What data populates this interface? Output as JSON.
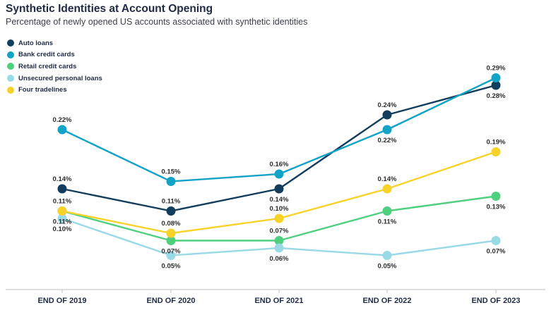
{
  "chart_data": {
    "type": "line",
    "title": "Synthetic Identities at Account Opening",
    "subtitle": "Percentage of newly opened US accounts associated with synthetic identities",
    "xlabel": "",
    "ylabel": "",
    "grid": false,
    "legend": "top-left",
    "categories": [
      "END OF 2019",
      "END OF 2020",
      "END OF 2021",
      "END OF 2022",
      "END OF 2023"
    ],
    "series": [
      {
        "name": "Auto loans",
        "color": "#123d5c",
        "values": [
          0.14,
          0.11,
          0.14,
          0.24,
          0.28
        ],
        "labels": [
          "0.14%",
          "0.11%",
          "0.14%",
          "0.24%",
          "0.28%"
        ],
        "label_pos": [
          "above",
          "above",
          "below",
          "above",
          "below"
        ]
      },
      {
        "name": "Bank credit cards",
        "color": "#12a3c7",
        "values": [
          0.22,
          0.15,
          0.16,
          0.22,
          0.29
        ],
        "labels": [
          "0.22%",
          "0.15%",
          "0.16%",
          "0.22%",
          "0.29%"
        ],
        "label_pos": [
          "above",
          "above",
          "above",
          "below",
          "above"
        ]
      },
      {
        "name": "Retail credit cards",
        "color": "#4fd07f",
        "values": [
          0.11,
          0.07,
          0.07,
          0.11,
          0.13
        ],
        "labels": [
          "0.11%",
          "0.07%",
          "0.07%",
          "0.11%",
          "0.13%"
        ],
        "label_pos": [
          "below",
          "below",
          "above",
          "below",
          "below"
        ]
      },
      {
        "name": "Unsecured personal loans",
        "color": "#9ad9e6",
        "values": [
          0.1,
          0.05,
          0.06,
          0.05,
          0.07
        ],
        "labels": [
          "0.10%",
          "0.05%",
          "0.06%",
          "0.05%",
          "0.07%"
        ],
        "label_pos": [
          "below",
          "below",
          "below",
          "below",
          "below"
        ]
      },
      {
        "name": "Four tradelines",
        "color": "#f7d229",
        "values": [
          0.11,
          0.08,
          0.1,
          0.14,
          0.19
        ],
        "labels": [
          "0.11%",
          "0.08%",
          "0.10%",
          "0.14%",
          "0.19%"
        ],
        "label_pos": [
          "above",
          "above",
          "above",
          "above",
          "above"
        ]
      }
    ]
  },
  "colors": {
    "axis": "#bfbfbf",
    "text": "#1f2a44"
  }
}
